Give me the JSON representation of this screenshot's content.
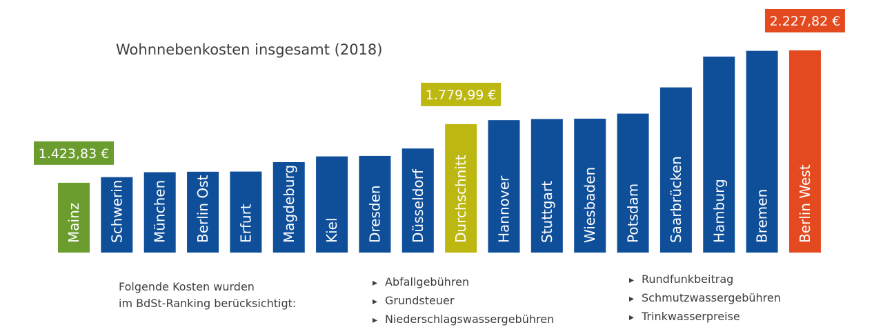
{
  "title": "Wohnnebenkosten insgesamt (2018)",
  "note": {
    "line1": "Folgende Kosten wurden",
    "line2": "im BdSt-Ranking berücksichtigt:"
  },
  "cost_items": [
    [
      "Abfallgebühren",
      "Grundsteuer",
      "Niederschlagswassergebühren"
    ],
    [
      "Rundfunkbeitrag",
      "Schmutzwassergebühren",
      "Trinkwasserpreise"
    ]
  ],
  "colors": {
    "default": "#0f4f9a",
    "min": "#6b9c2e",
    "average": "#bdb811",
    "max": "#e34a1f"
  },
  "chart_data": {
    "type": "bar",
    "title": "Wohnnebenkosten insgesamt (2018)",
    "categories": [
      "Mainz",
      "Schwerin",
      "München",
      "Berlin Ost",
      "Erfurt",
      "Magdeburg",
      "Kiel",
      "Dresden",
      "Düsseldorf",
      "Durchschnitt",
      "Hannover",
      "Stuttgart",
      "Wiesbaden",
      "Potsdam",
      "Saarbrücken",
      "Hamburg",
      "Bremen",
      "Berlin West"
    ],
    "values": [
      1423.83,
      1458,
      1488,
      1491,
      1492,
      1549,
      1584,
      1587,
      1632,
      1779.99,
      1804,
      1811,
      1813,
      1844,
      2003,
      2190,
      2225,
      2227.82
    ],
    "highlights": [
      "min",
      "default",
      "default",
      "default",
      "default",
      "default",
      "default",
      "default",
      "default",
      "average",
      "default",
      "default",
      "default",
      "default",
      "default",
      "default",
      "default",
      "max"
    ],
    "value_labels": [
      {
        "index": 0,
        "text": "1.423,83 €"
      },
      {
        "index": 9,
        "text": "1.779,99 €"
      },
      {
        "index": 17,
        "text": "2.227,82 €"
      }
    ],
    "ylim": [
      1000,
      2300
    ],
    "xlabel": "",
    "ylabel": "",
    "grid": false,
    "legend": "none",
    "orientation": "vertical bars, category labels rotated inside bars"
  }
}
